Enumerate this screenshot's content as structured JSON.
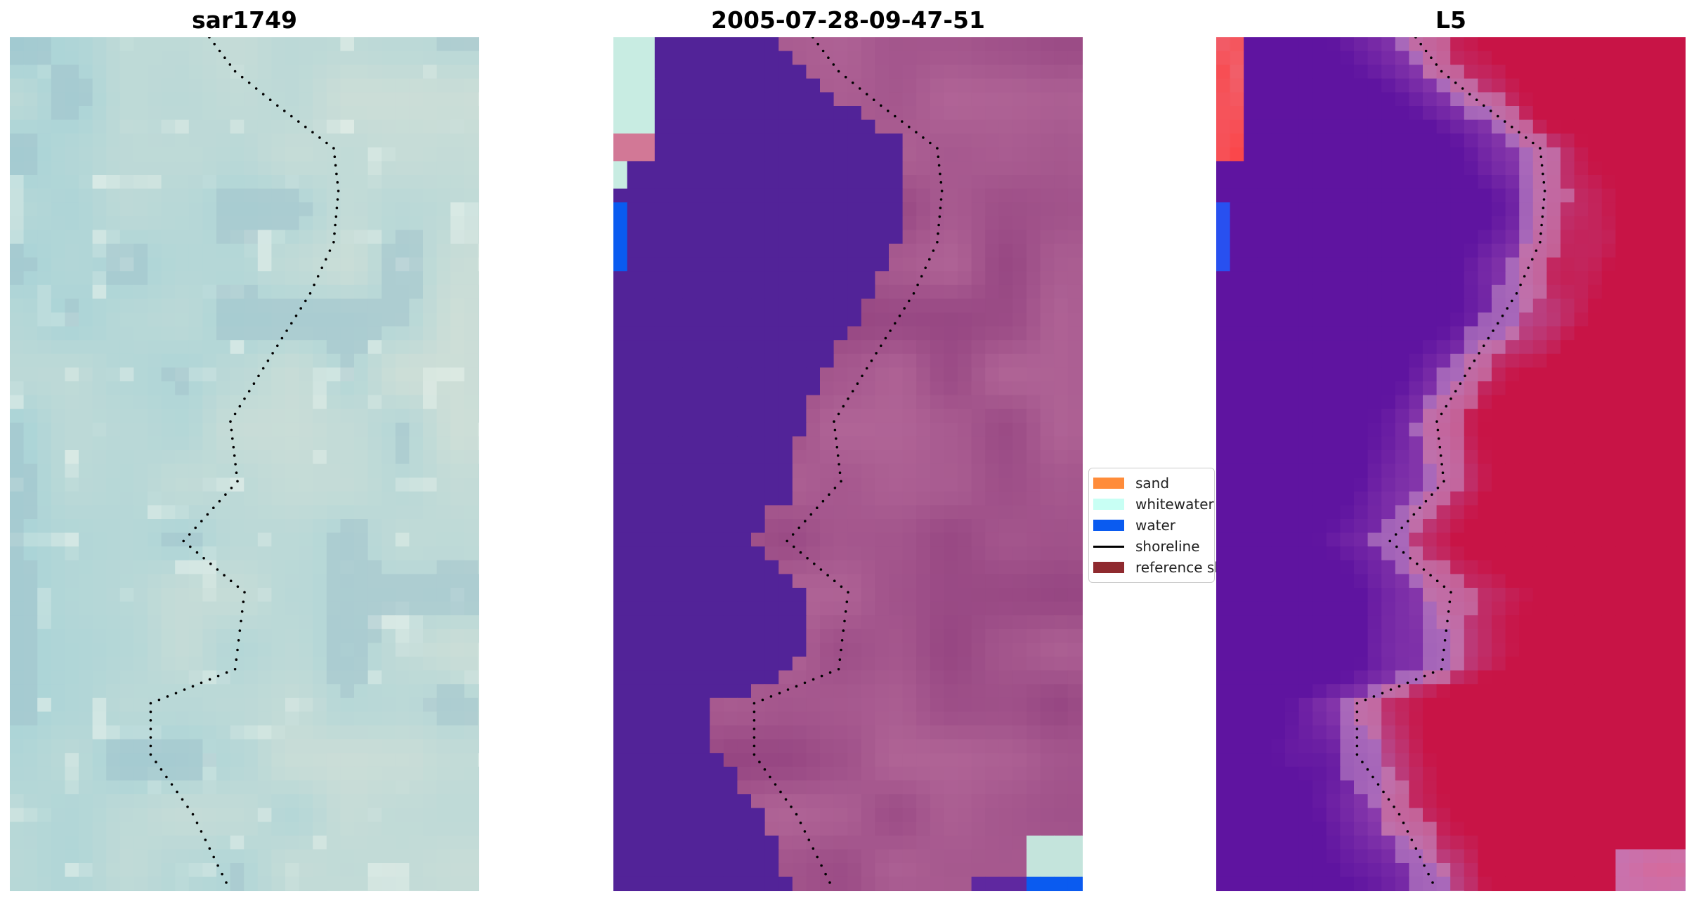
{
  "panels": [
    {
      "id": "a",
      "title": "sar1749"
    },
    {
      "id": "b",
      "title": "2005-07-28-09-47-51"
    },
    {
      "id": "c",
      "title": "L5"
    }
  ],
  "legend": {
    "items": [
      {
        "label": "sand",
        "color": "#ff8c3a",
        "kind": "patch"
      },
      {
        "label": "whitewater",
        "color": "#c8fff4",
        "kind": "patch"
      },
      {
        "label": "water",
        "color": "#0a5bf0",
        "kind": "patch"
      },
      {
        "label": "shoreline",
        "color": "#000000",
        "kind": "line"
      },
      {
        "label": "reference shoreline",
        "color": "#8f2a2f",
        "kind": "patch"
      }
    ]
  },
  "colors": {
    "rgb_base": "#a9c4c6",
    "water_class": "#522398",
    "land_class": "#a65f92",
    "index_water": "#5c1d9e",
    "index_land": "#c72e62"
  }
}
